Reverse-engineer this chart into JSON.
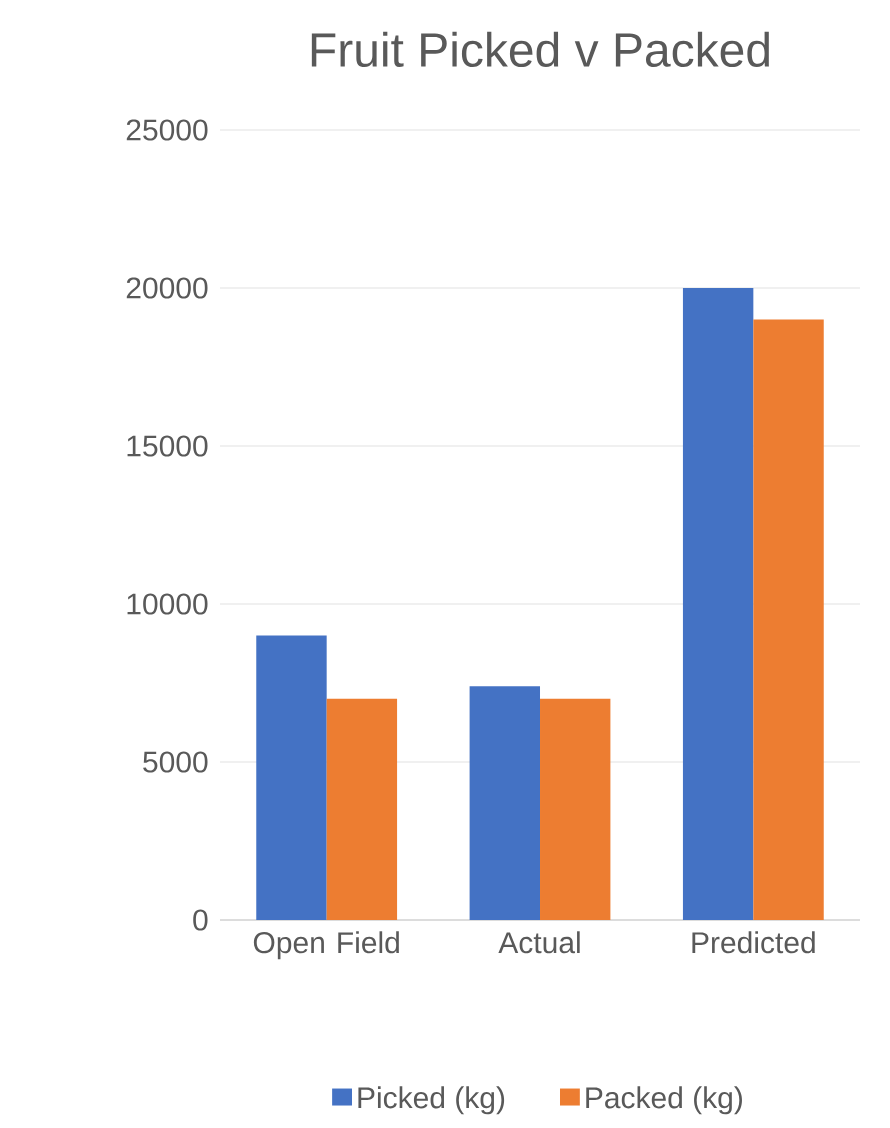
{
  "chart_data": {
    "type": "bar",
    "title": "Fruit Picked v Packed",
    "categories": [
      "Open Field",
      "Actual",
      "Predicted"
    ],
    "series": [
      {
        "name": "Picked (kg)",
        "color": "#4472c4",
        "values": [
          9000,
          7400,
          20000
        ]
      },
      {
        "name": "Packed (kg)",
        "color": "#ed7d31",
        "values": [
          7000,
          7000,
          19000
        ]
      }
    ],
    "ylim": [
      0,
      25000
    ],
    "yticks": [
      0,
      5000,
      10000,
      15000,
      20000,
      25000
    ],
    "grid": "y",
    "legend": "bottom"
  }
}
